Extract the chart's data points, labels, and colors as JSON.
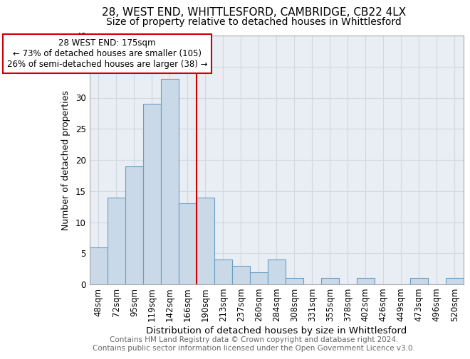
{
  "title1": "28, WEST END, WHITTLESFORD, CAMBRIDGE, CB22 4LX",
  "title2": "Size of property relative to detached houses in Whittlesford",
  "xlabel": "Distribution of detached houses by size in Whittlesford",
  "ylabel": "Number of detached properties",
  "categories": [
    "48sqm",
    "72sqm",
    "95sqm",
    "119sqm",
    "142sqm",
    "166sqm",
    "190sqm",
    "213sqm",
    "237sqm",
    "260sqm",
    "284sqm",
    "308sqm",
    "331sqm",
    "355sqm",
    "378sqm",
    "402sqm",
    "426sqm",
    "449sqm",
    "473sqm",
    "496sqm",
    "520sqm"
  ],
  "values": [
    6,
    14,
    19,
    29,
    33,
    13,
    14,
    4,
    3,
    2,
    4,
    1,
    0,
    1,
    0,
    1,
    0,
    0,
    1,
    0,
    1
  ],
  "bar_color": "#c9d9e8",
  "bar_edge_color": "#6a9ec4",
  "vline_x": 5.5,
  "vline_color": "#cc0000",
  "annotation_text": "28 WEST END: 175sqm\n← 73% of detached houses are smaller (105)\n26% of semi-detached houses are larger (38) →",
  "annotation_box_color": "#ffffff",
  "annotation_box_edge": "#cc0000",
  "ylim": [
    0,
    40
  ],
  "yticks": [
    0,
    5,
    10,
    15,
    20,
    25,
    30,
    35,
    40
  ],
  "grid_color": "#d0d8e0",
  "bg_color": "#e8eef4",
  "fig_bg_color": "#ffffff",
  "footer": "Contains HM Land Registry data © Crown copyright and database right 2024.\nContains public sector information licensed under the Open Government Licence v3.0.",
  "title1_fontsize": 11,
  "title2_fontsize": 10,
  "xlabel_fontsize": 9.5,
  "ylabel_fontsize": 9,
  "tick_fontsize": 8.5,
  "footer_fontsize": 7.5,
  "annot_fontsize": 8.5
}
